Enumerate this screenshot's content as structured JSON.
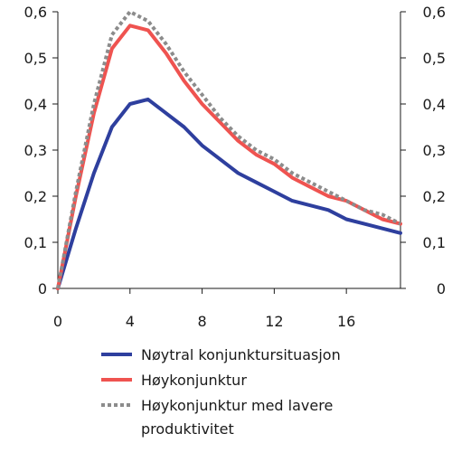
{
  "chart_data": {
    "type": "line",
    "x": [
      0,
      1,
      2,
      3,
      4,
      5,
      6,
      7,
      8,
      9,
      10,
      11,
      12,
      13,
      14,
      15,
      16,
      17,
      18,
      19
    ],
    "xlim": [
      0,
      19
    ],
    "ylim": [
      0,
      0.6
    ],
    "xticks": [
      0,
      4,
      8,
      12,
      16
    ],
    "xtick_labels": [
      "0",
      "4",
      "8",
      "12",
      "16"
    ],
    "yticks": [
      0,
      0.1,
      0.2,
      0.3,
      0.4,
      0.5,
      0.6
    ],
    "ytick_labels": [
      "0",
      "0,1",
      "0,2",
      "0,3",
      "0,4",
      "0,5",
      "0,6"
    ],
    "right_axis_ticks": true,
    "grid": false,
    "legend_position": "bottom",
    "series": [
      {
        "name": "Nøytral konjunktursituasjon",
        "color": "#2e3f9e",
        "style": "solid",
        "values": [
          0,
          0.13,
          0.25,
          0.35,
          0.4,
          0.41,
          0.38,
          0.35,
          0.31,
          0.28,
          0.25,
          0.23,
          0.21,
          0.19,
          0.18,
          0.17,
          0.15,
          0.14,
          0.13,
          0.12
        ]
      },
      {
        "name": "Høykonjunktur",
        "color": "#ef5350",
        "style": "solid",
        "values": [
          0,
          0.2,
          0.38,
          0.52,
          0.57,
          0.56,
          0.51,
          0.45,
          0.4,
          0.36,
          0.32,
          0.29,
          0.27,
          0.24,
          0.22,
          0.2,
          0.19,
          0.17,
          0.15,
          0.14
        ]
      },
      {
        "name": "Høykonjunktur med lavere produktivitet",
        "color": "#8c8c8c",
        "style": "dotted",
        "values": [
          0,
          0.21,
          0.4,
          0.55,
          0.6,
          0.58,
          0.53,
          0.47,
          0.42,
          0.37,
          0.33,
          0.3,
          0.28,
          0.25,
          0.23,
          0.21,
          0.19,
          0.17,
          0.16,
          0.14
        ]
      }
    ],
    "legend_lines": [
      [
        "Nøytral konjunktursituasjon"
      ],
      [
        "Høykonjunktur"
      ],
      [
        "Høykonjunktur med lavere",
        "produktivitet"
      ]
    ]
  }
}
